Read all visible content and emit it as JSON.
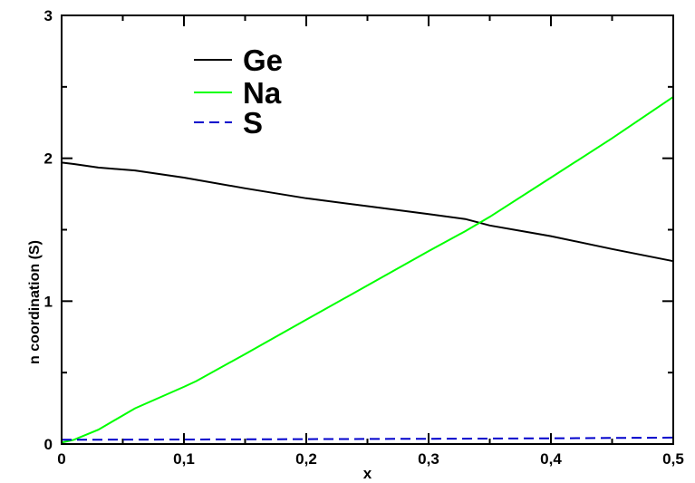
{
  "chart_data": {
    "type": "line",
    "xlabel": "x",
    "ylabel": "n coordination (S)",
    "xlim": [
      0,
      0.5
    ],
    "ylim": [
      0,
      3
    ],
    "x_ticks": [
      "0",
      "0,1",
      "0,2",
      "0,3",
      "0,4",
      "0,5"
    ],
    "y_ticks": [
      "0",
      "1",
      "2",
      "3"
    ],
    "grid": false,
    "legend_position": "top-left",
    "series": [
      {
        "name": "Ge",
        "color": "#000000",
        "dash": "solid",
        "points": [
          [
            0,
            1.97
          ],
          [
            0.01,
            1.96
          ],
          [
            0.03,
            1.935
          ],
          [
            0.06,
            1.915
          ],
          [
            0.1,
            1.865
          ],
          [
            0.15,
            1.79
          ],
          [
            0.2,
            1.72
          ],
          [
            0.25,
            1.665
          ],
          [
            0.3,
            1.61
          ],
          [
            0.33,
            1.575
          ],
          [
            0.35,
            1.53
          ],
          [
            0.4,
            1.455
          ],
          [
            0.45,
            1.365
          ],
          [
            0.5,
            1.28
          ]
        ]
      },
      {
        "name": "Na",
        "color": "#00ff00",
        "dash": "solid",
        "points": [
          [
            0,
            0.01
          ],
          [
            0.01,
            0.03
          ],
          [
            0.03,
            0.1
          ],
          [
            0.06,
            0.25
          ],
          [
            0.1,
            0.4
          ],
          [
            0.11,
            0.44
          ],
          [
            0.15,
            0.63
          ],
          [
            0.2,
            0.87
          ],
          [
            0.25,
            1.11
          ],
          [
            0.3,
            1.35
          ],
          [
            0.33,
            1.49
          ],
          [
            0.35,
            1.59
          ],
          [
            0.4,
            1.865
          ],
          [
            0.45,
            2.14
          ],
          [
            0.5,
            2.43
          ]
        ]
      },
      {
        "name": "S",
        "color": "#0000cc",
        "dash": "dashed",
        "points": [
          [
            0,
            0.03
          ],
          [
            0.1,
            0.032
          ],
          [
            0.2,
            0.034
          ],
          [
            0.3,
            0.037
          ],
          [
            0.4,
            0.04
          ],
          [
            0.5,
            0.045
          ]
        ]
      }
    ]
  }
}
